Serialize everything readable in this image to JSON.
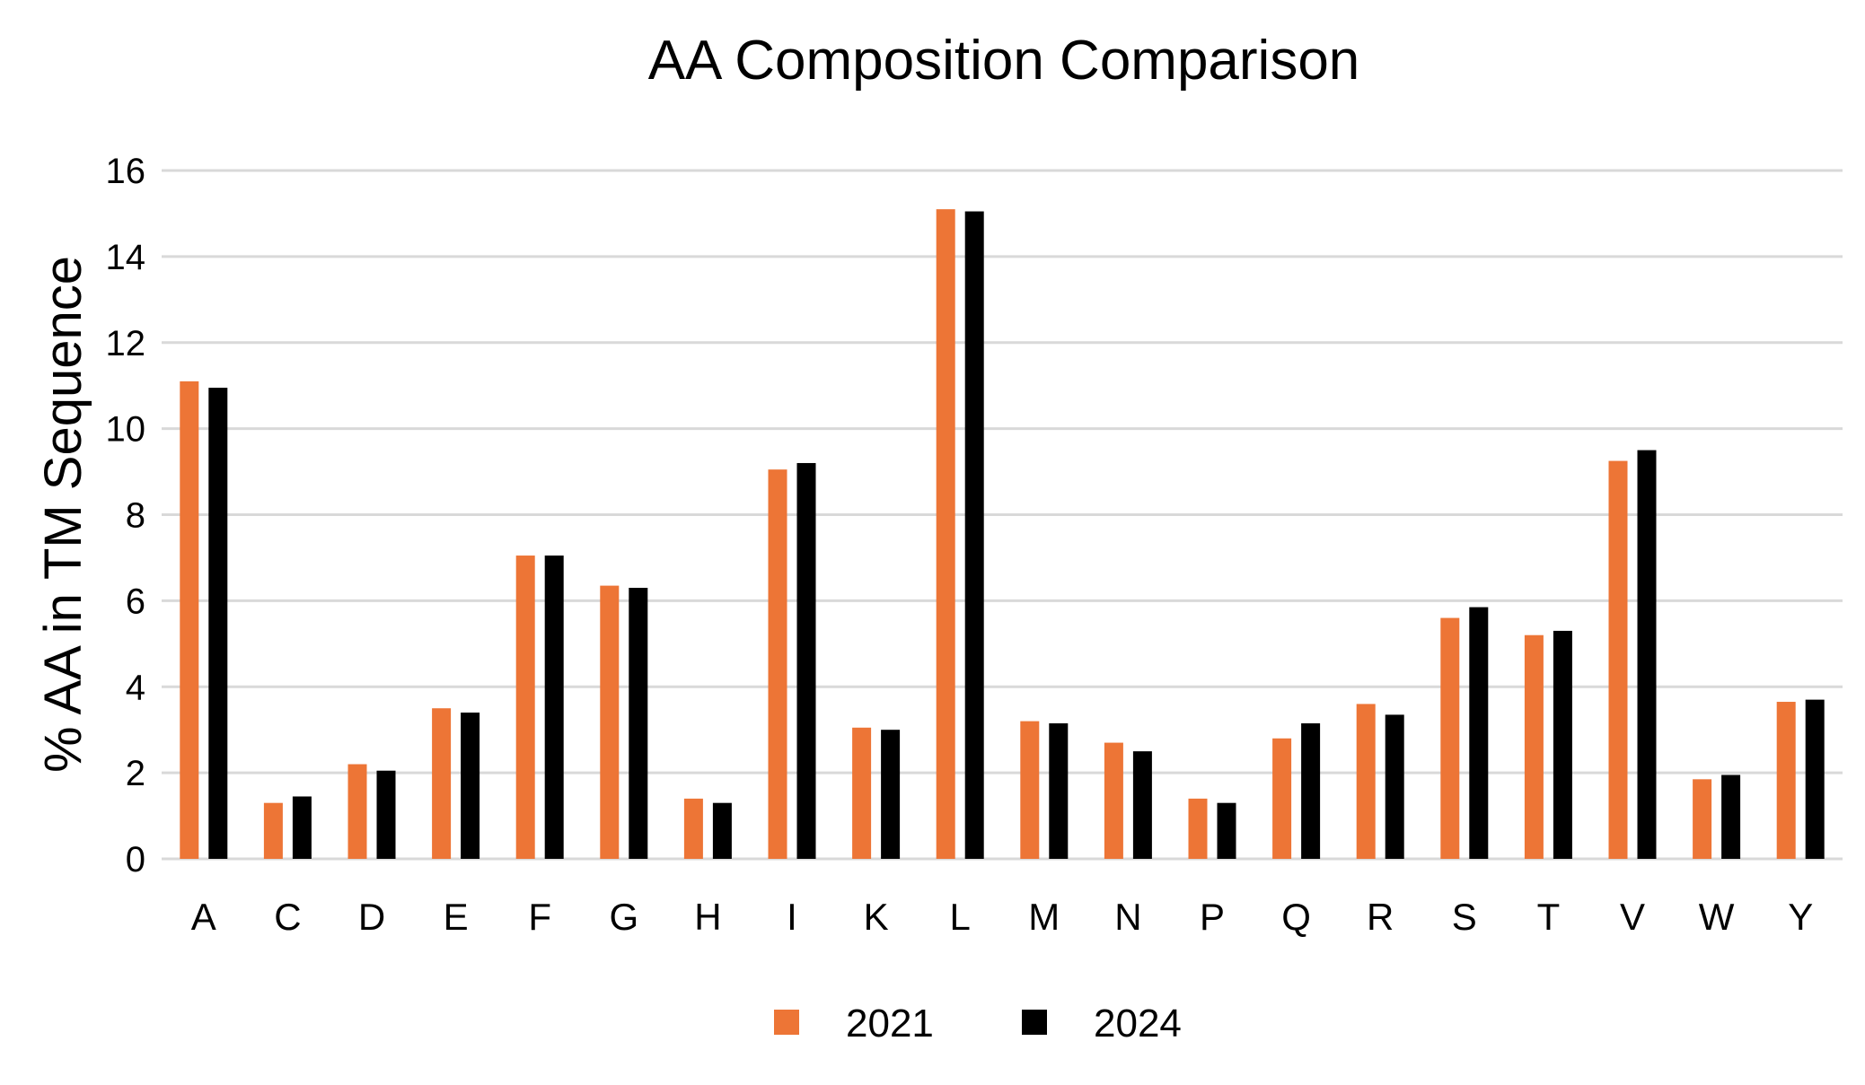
{
  "chart_data": {
    "type": "bar",
    "title": "AA Composition Comparison",
    "xlabel": "",
    "ylabel": "% AA in TM Sequence",
    "ylim": [
      0,
      16
    ],
    "yticks": [
      "0",
      "2",
      "4",
      "6",
      "8",
      "10",
      "12",
      "14",
      "16"
    ],
    "grid": true,
    "legend_position": "bottom",
    "categories": [
      "A",
      "C",
      "D",
      "E",
      "F",
      "G",
      "H",
      "I",
      "K",
      "L",
      "M",
      "N",
      "P",
      "Q",
      "R",
      "S",
      "T",
      "V",
      "W",
      "Y"
    ],
    "series": [
      {
        "name": "2021",
        "color": "#ed7536",
        "values": [
          11.1,
          1.3,
          2.2,
          3.5,
          7.05,
          6.35,
          1.4,
          9.05,
          3.05,
          15.1,
          3.2,
          2.7,
          1.4,
          2.8,
          3.6,
          5.6,
          5.2,
          9.25,
          1.85,
          3.65
        ]
      },
      {
        "name": "2024",
        "color": "#000000",
        "values": [
          10.95,
          1.45,
          2.05,
          3.4,
          7.05,
          6.3,
          1.3,
          9.2,
          3.0,
          15.05,
          3.15,
          2.5,
          1.3,
          3.15,
          3.35,
          5.85,
          5.3,
          9.5,
          1.95,
          3.7
        ]
      }
    ]
  }
}
